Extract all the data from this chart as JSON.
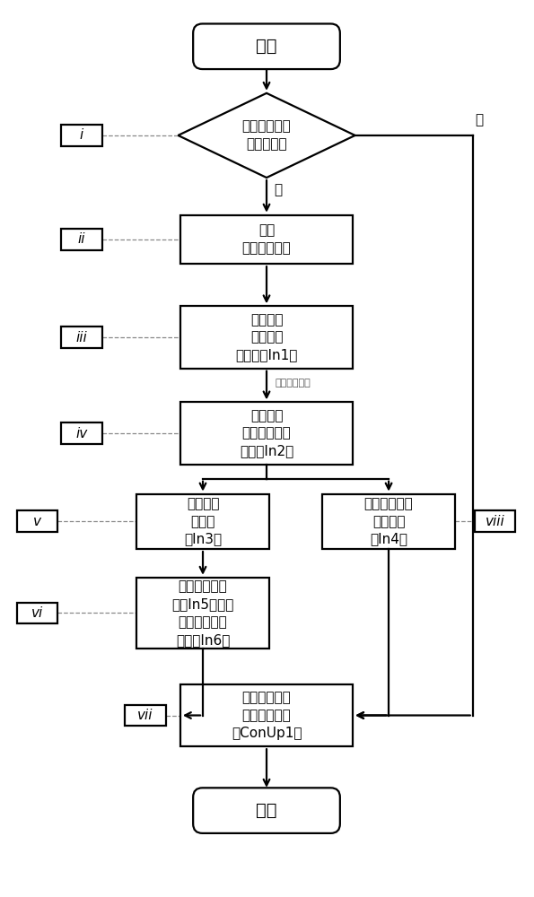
{
  "bg_color": "#ffffff",
  "line_color": "#000000",
  "figsize": [
    5.95,
    10.0
  ],
  "dpi": 100,
  "lw": 1.6,
  "start_text": "开始",
  "end_text": "结束",
  "diamond_text": "判断是否进入\n软启动控制",
  "yes_text": "是",
  "no_text": "否",
  "annotation_text": "线性拟合公式",
  "box_ii_text": "开始\n采集电平给定",
  "box_iii_text": "模数转换\n形成开环\n输入量（In1）",
  "box_iv_text": "计算得到\n开环控制比例\n系数（In2）",
  "box_v_text": "形成实际\n斩波限\n（In3）",
  "box_viiir_text": "形成实际脉宽\n调制信号\n（In4）",
  "box_vi_text": "与相电流采样\n值（In5）比较\n形成斩波判断\n信号（In6）",
  "box_vii_text": "形成上开关功\n率管控制信号\n（ConUp1）",
  "label_i": "i",
  "label_ii": "ii",
  "label_iii": "iii",
  "label_iv": "iv",
  "label_v": "v",
  "label_vi": "vi",
  "label_vii": "vii",
  "label_viii": "viii"
}
